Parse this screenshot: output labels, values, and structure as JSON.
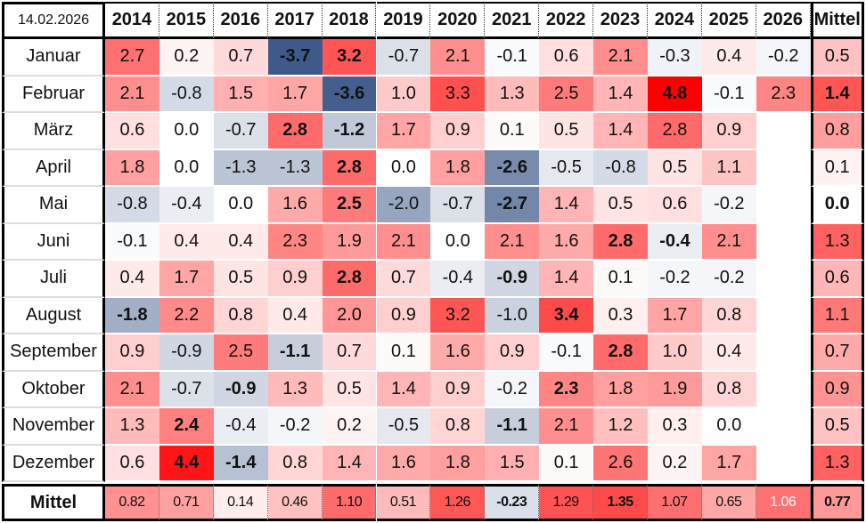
{
  "date": "14.02.2026",
  "chart_data": {
    "type": "heatmap",
    "title": "",
    "columns": [
      "2014",
      "2015",
      "2016",
      "2017",
      "2018",
      "2019",
      "2020",
      "2021",
      "2022",
      "2023",
      "2024",
      "2025",
      "2026",
      "Mittel"
    ],
    "rows": [
      {
        "label": "Januar",
        "values": [
          "2.7",
          "0.2",
          "0.7",
          "-3.7",
          "3.2",
          "-0.7",
          "2.1",
          "-0.1",
          "0.6",
          "2.1",
          "-0.3",
          "0.4",
          "-0.2",
          "0.5"
        ],
        "bold": [
          3,
          4
        ]
      },
      {
        "label": "Februar",
        "values": [
          "2.1",
          "-0.8",
          "1.5",
          "1.7",
          "-3.6",
          "1.0",
          "3.3",
          "1.3",
          "2.5",
          "1.4",
          "4.8",
          "-0.1",
          "2.3",
          "1.4"
        ],
        "bold": [
          4,
          10,
          13
        ]
      },
      {
        "label": "März",
        "values": [
          "0.6",
          "0.0",
          "-0.7",
          "2.8",
          "-1.2",
          "1.7",
          "0.9",
          "0.1",
          "0.5",
          "1.4",
          "2.8",
          "0.9",
          "",
          "0.8"
        ],
        "bold": [
          3,
          4
        ]
      },
      {
        "label": "April",
        "values": [
          "1.8",
          "0.0",
          "-1.3",
          "-1.3",
          "2.8",
          "0.0",
          "1.8",
          "-2.6",
          "-0.5",
          "-0.8",
          "0.5",
          "1.1",
          "",
          "0.1"
        ],
        "bold": [
          4,
          7
        ]
      },
      {
        "label": "Mai",
        "values": [
          "-0.8",
          "-0.4",
          "0.0",
          "1.6",
          "2.5",
          "-2.0",
          "-0.7",
          "-2.7",
          "1.4",
          "0.5",
          "0.6",
          "-0.2",
          "",
          "0.0"
        ],
        "bold": [
          4,
          7,
          13
        ]
      },
      {
        "label": "Juni",
        "values": [
          "-0.1",
          "0.4",
          "0.4",
          "2.3",
          "1.9",
          "2.1",
          "0.0",
          "2.1",
          "1.6",
          "2.8",
          "-0.4",
          "2.1",
          "",
          "1.3"
        ],
        "bold": [
          9,
          10
        ]
      },
      {
        "label": "Juli",
        "values": [
          "0.4",
          "1.7",
          "0.5",
          "0.9",
          "2.8",
          "0.7",
          "-0.4",
          "-0.9",
          "1.4",
          "0.1",
          "-0.2",
          "-0.2",
          "",
          "0.6"
        ],
        "bold": [
          4,
          7
        ]
      },
      {
        "label": "August",
        "values": [
          "-1.8",
          "2.2",
          "0.8",
          "0.4",
          "2.0",
          "0.9",
          "3.2",
          "-1.0",
          "3.4",
          "0.3",
          "1.7",
          "0.8",
          "",
          "1.1"
        ],
        "bold": [
          0,
          8
        ]
      },
      {
        "label": "September",
        "values": [
          "0.9",
          "-0.9",
          "2.5",
          "-1.1",
          "0.7",
          "0.1",
          "1.6",
          "0.9",
          "-0.1",
          "2.8",
          "1.0",
          "0.4",
          "",
          "0.7"
        ],
        "bold": [
          3,
          9
        ]
      },
      {
        "label": "Oktober",
        "values": [
          "2.1",
          "-0.7",
          "-0.9",
          "1.3",
          "0.5",
          "1.4",
          "0.9",
          "-0.2",
          "2.3",
          "1.8",
          "1.9",
          "0.8",
          "",
          "0.9"
        ],
        "bold": [
          2,
          8
        ]
      },
      {
        "label": "November",
        "values": [
          "1.3",
          "2.4",
          "-0.4",
          "-0.2",
          "0.2",
          "-0.5",
          "0.8",
          "-1.1",
          "2.1",
          "1.2",
          "0.3",
          "0.0",
          "",
          "0.5"
        ],
        "bold": [
          1,
          7
        ]
      },
      {
        "label": "Dezember",
        "values": [
          "0.6",
          "4.4",
          "-1.4",
          "0.8",
          "1.4",
          "1.6",
          "1.8",
          "1.5",
          "0.1",
          "2.6",
          "0.2",
          "1.7",
          "",
          "1.3"
        ],
        "bold": [
          1,
          2
        ]
      }
    ],
    "mean_row": {
      "label": "Mittel",
      "values": [
        "0.82",
        "0.71",
        "0.14",
        "0.46",
        "1.10",
        "0.51",
        "1.26",
        "-0.23",
        "1.29",
        "1.35",
        "1.07",
        "0.65",
        "1.06",
        "0.77"
      ],
      "bold": [
        7,
        9,
        13
      ],
      "white_text": [
        12
      ]
    },
    "colors": {
      "positive": "#ff0000",
      "negative": "#3f5a8a",
      "neutral": "#ffffff"
    }
  }
}
